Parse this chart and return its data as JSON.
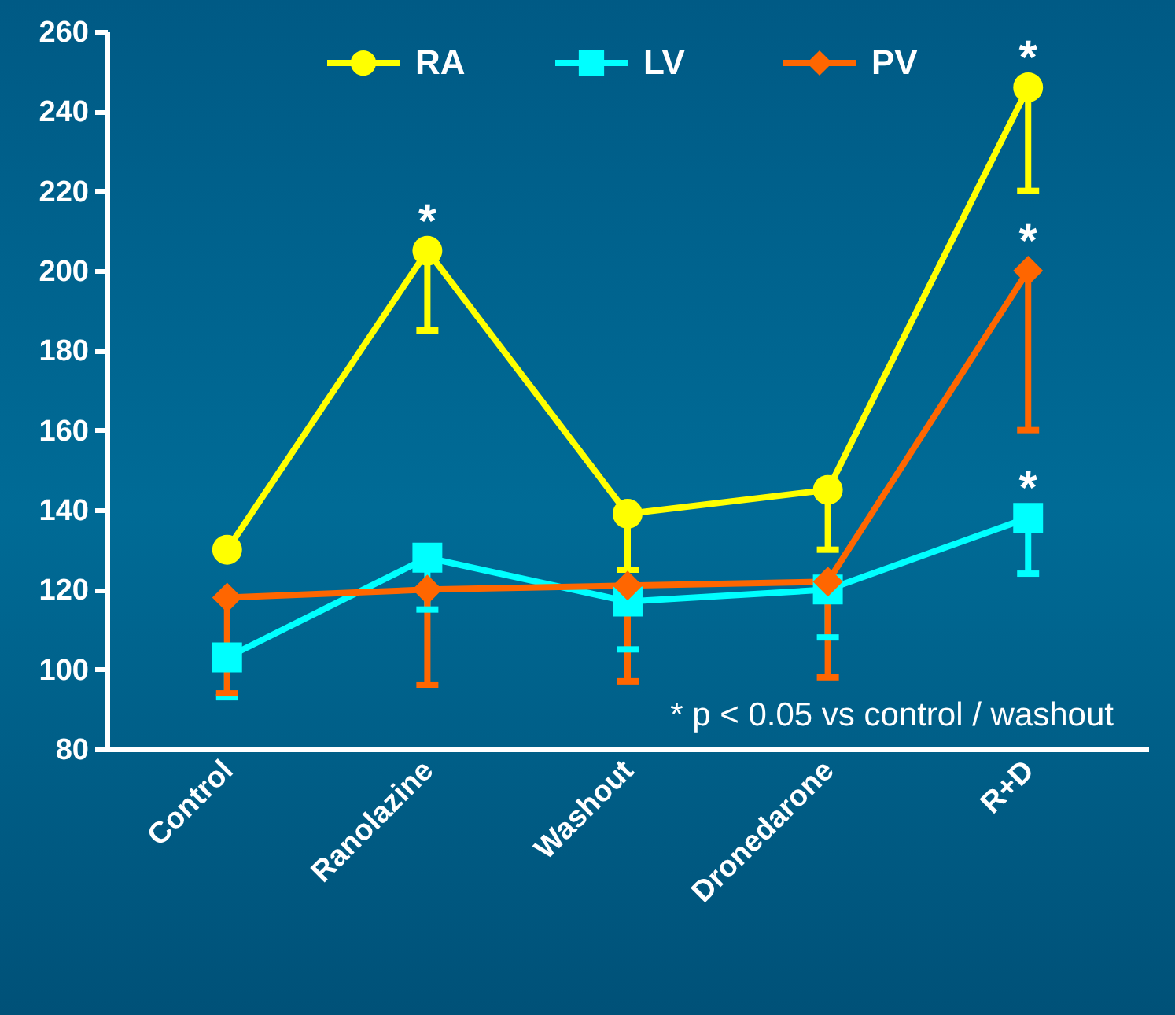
{
  "chart_data": {
    "type": "line",
    "categories": [
      "Control",
      "Ranolazine",
      "Washout",
      "Dronedarone",
      "R+D"
    ],
    "series": [
      {
        "name": "RA",
        "color": "#ffff00",
        "marker": "circle",
        "values": [
          130,
          205,
          139,
          145,
          246
        ],
        "errors": [
          null,
          [
            185,
            205
          ],
          [
            125,
            139
          ],
          [
            130,
            145
          ],
          [
            220,
            246
          ]
        ]
      },
      {
        "name": "LV",
        "color": "#00ffff",
        "marker": "square",
        "values": [
          103,
          128,
          117,
          120,
          138
        ],
        "errors": [
          [
            93,
            103
          ],
          [
            115,
            128
          ],
          [
            105,
            117
          ],
          [
            108,
            120
          ],
          [
            124,
            138
          ]
        ]
      },
      {
        "name": "PV",
        "color": "#ff6600",
        "marker": "diamond",
        "values": [
          118,
          120,
          121,
          122,
          200
        ],
        "errors": [
          [
            94,
            118
          ],
          [
            96,
            120
          ],
          [
            97,
            121
          ],
          [
            98,
            122
          ],
          [
            160,
            200
          ]
        ]
      }
    ],
    "ylim": [
      80,
      260
    ],
    "yticks": [
      80,
      100,
      120,
      140,
      160,
      180,
      200,
      220,
      240,
      260
    ],
    "legend": "top",
    "annotations": [
      {
        "text": "*",
        "x": "Ranolazine",
        "y": 205
      },
      {
        "text": "*",
        "x": "R+D",
        "y": 246
      },
      {
        "text": "*",
        "x": "R+D",
        "y": 200
      },
      {
        "text": "*",
        "x": "R+D",
        "y": 138
      },
      "* p < 0.05 vs control / washout"
    ]
  }
}
